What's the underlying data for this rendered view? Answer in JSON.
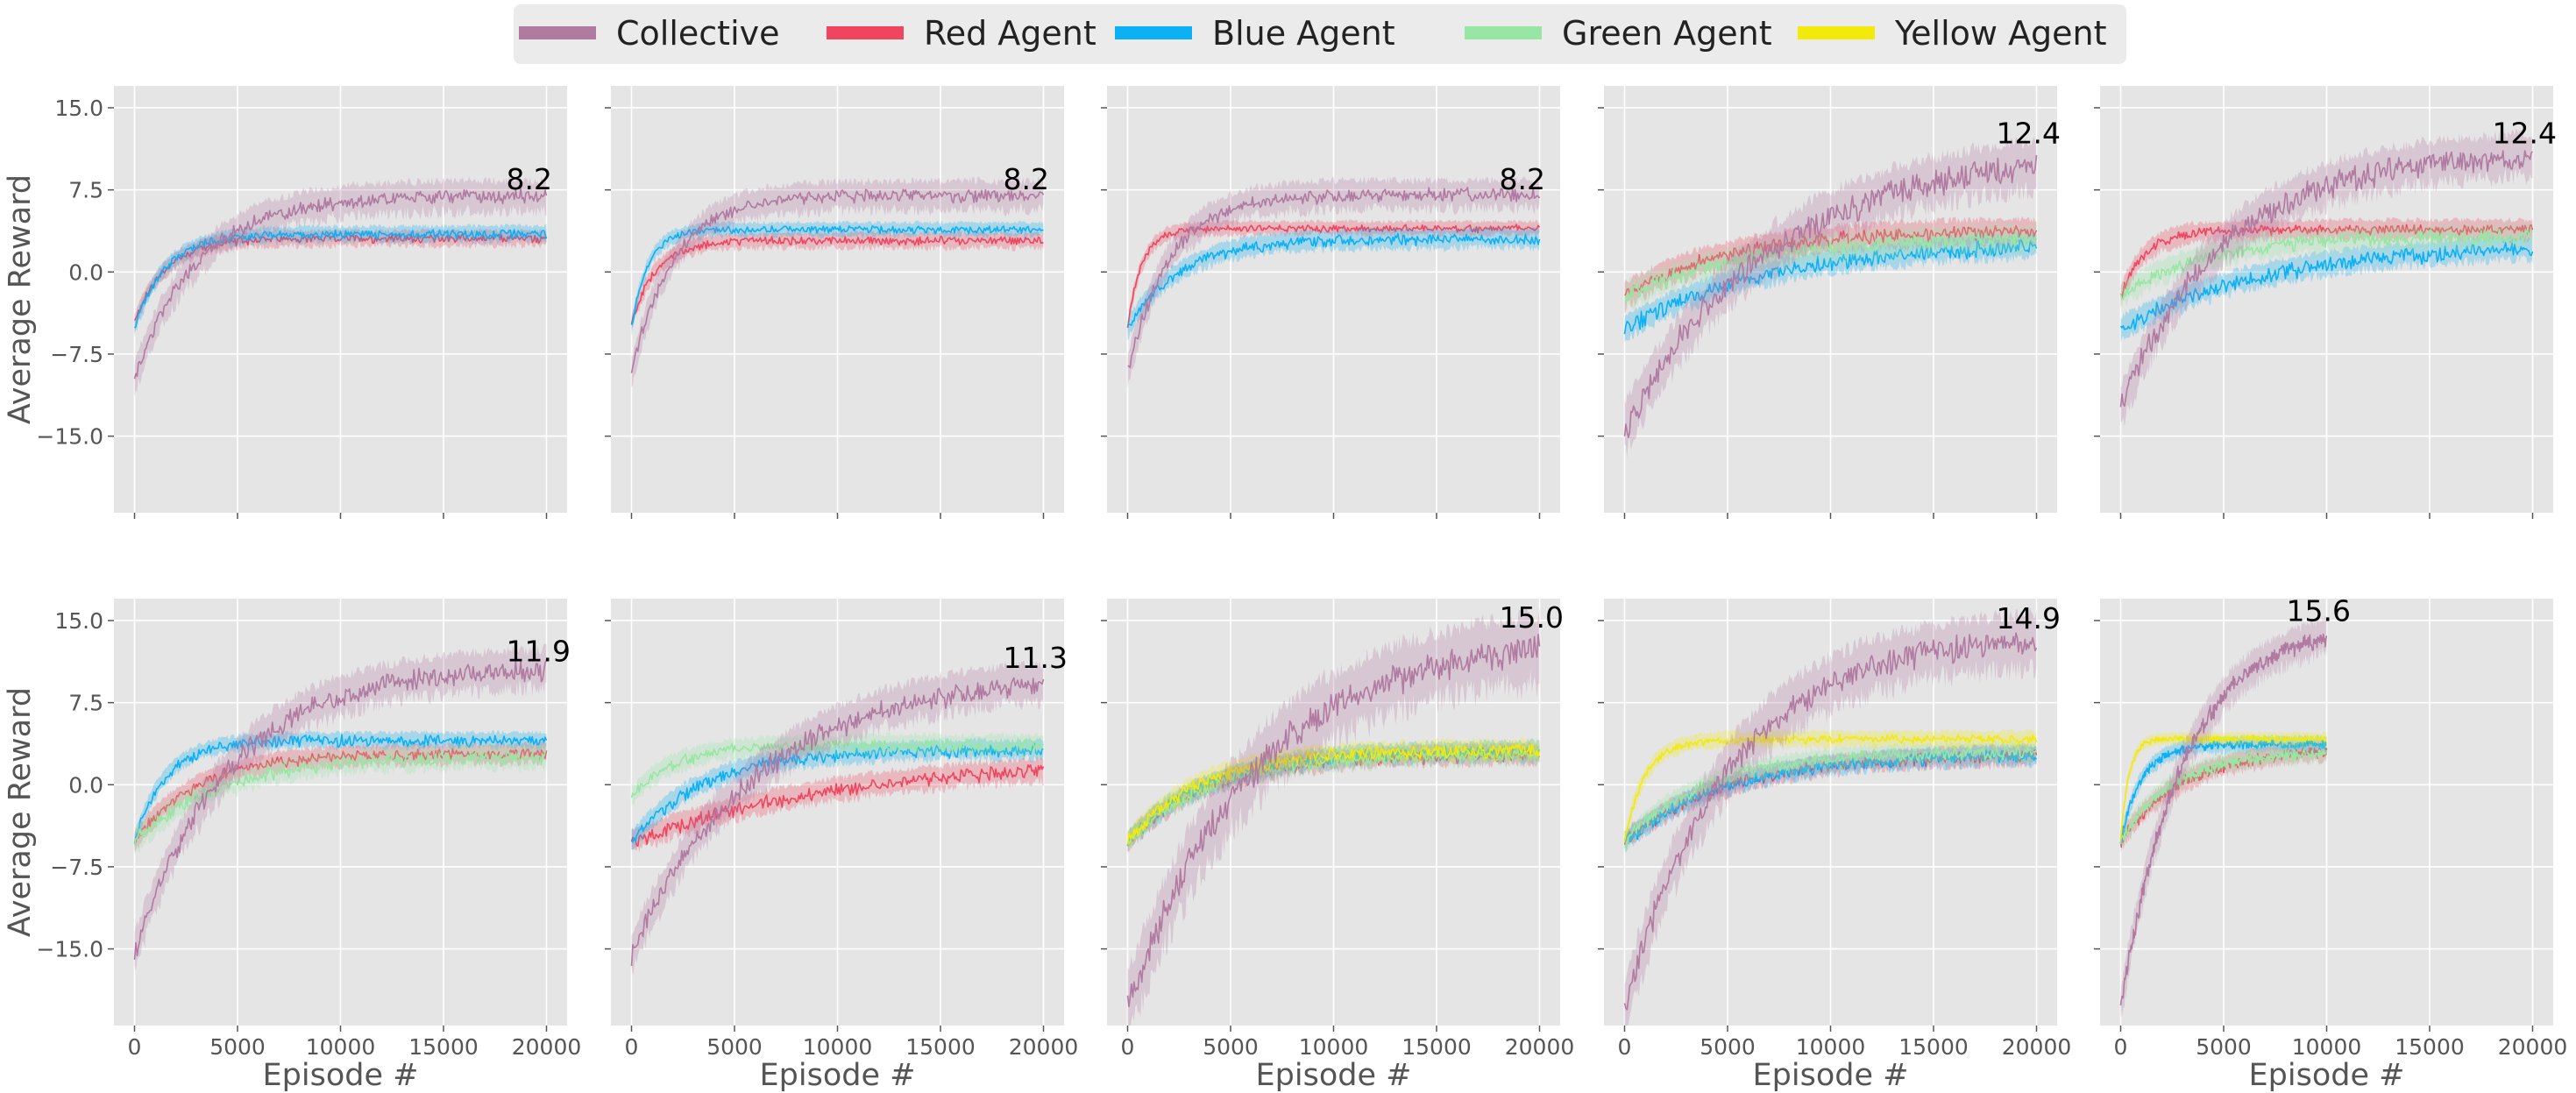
{
  "chart_data": {
    "type": "line",
    "layout": "2 rows x 5 columns, shared y axis",
    "ylabel": "Average Reward",
    "xlabel": "Episode #",
    "ylim": [
      -22,
      17
    ],
    "yticks": [
      15.0,
      7.5,
      0.0,
      -7.5,
      -15.0
    ],
    "ytick_labels": [
      "15.0",
      "7.5",
      "0.0",
      "−7.5",
      "−15.0"
    ],
    "xlim": [
      -1000,
      21000
    ],
    "xticks": [
      0,
      5000,
      10000,
      15000,
      20000
    ],
    "xtick_labels": [
      "0",
      "5000",
      "10000",
      "15000",
      "20000"
    ],
    "grid": true,
    "legend_position": "top-center",
    "legend": [
      {
        "name": "Collective",
        "color": "#b07aa1"
      },
      {
        "name": "Red Agent",
        "color": "#f0455f"
      },
      {
        "name": "Blue Agent",
        "color": "#0bb0f5"
      },
      {
        "name": "Green Agent",
        "color": "#98e6a4"
      },
      {
        "name": "Yellow Agent",
        "color": "#f2ea0a"
      }
    ],
    "panels": [
      {
        "final_label": "8.2",
        "final_value": 8.2,
        "x_max": 20000,
        "series": [
          {
            "name": "Collective",
            "start": -9.5,
            "plateau": 7.2,
            "rate": 3000,
            "noise": 1.0,
            "band": 1.6
          },
          {
            "name": "Red Agent",
            "start": -4.5,
            "plateau": 3.2,
            "rate": 1500,
            "noise": 0.6,
            "band": 0.8
          },
          {
            "name": "Blue Agent",
            "start": -5,
            "plateau": 3.6,
            "rate": 1500,
            "noise": 0.6,
            "band": 0.8
          }
        ]
      },
      {
        "final_label": "8.2",
        "final_value": 8.2,
        "x_max": 20000,
        "series": [
          {
            "name": "Collective",
            "start": -9,
            "plateau": 7.2,
            "rate": 2000,
            "noise": 0.9,
            "band": 1.5
          },
          {
            "name": "Red Agent",
            "start": -4.5,
            "plateau": 3.0,
            "rate": 1200,
            "noise": 0.6,
            "band": 0.8
          },
          {
            "name": "Blue Agent",
            "start": -5,
            "plateau": 4.0,
            "rate": 800,
            "noise": 0.5,
            "band": 0.7
          }
        ]
      },
      {
        "final_label": "8.2",
        "final_value": 8.2,
        "x_max": 20000,
        "series": [
          {
            "name": "Collective",
            "start": -9,
            "plateau": 7.3,
            "rate": 2000,
            "noise": 1.0,
            "band": 1.5
          },
          {
            "name": "Red Agent",
            "start": -5,
            "plateau": 4.1,
            "rate": 700,
            "noise": 0.5,
            "band": 0.7
          },
          {
            "name": "Blue Agent",
            "start": -5,
            "plateau": 3.2,
            "rate": 2500,
            "noise": 0.8,
            "band": 1.0
          }
        ]
      },
      {
        "final_label": "12.4",
        "final_value": 12.4,
        "x_max": 20000,
        "series": [
          {
            "name": "Collective",
            "start": -14,
            "plateau": 11.6,
            "rate": 7000,
            "noise": 2.0,
            "band": 2.5
          },
          {
            "name": "Red Agent",
            "start": -2,
            "plateau": 4.0,
            "rate": 5000,
            "noise": 1.0,
            "band": 1.3
          },
          {
            "name": "Blue Agent",
            "start": -5,
            "plateau": 3.0,
            "rate": 7000,
            "noise": 1.1,
            "band": 1.2
          },
          {
            "name": "Green Agent",
            "start": -2,
            "plateau": 3.5,
            "rate": 6000,
            "noise": 1.1,
            "band": 1.4
          }
        ]
      },
      {
        "final_label": "12.4",
        "final_value": 12.4,
        "x_max": 20000,
        "series": [
          {
            "name": "Collective",
            "start": -12,
            "plateau": 11.4,
            "rate": 5000,
            "noise": 1.8,
            "band": 2.2
          },
          {
            "name": "Red Agent",
            "start": -2,
            "plateau": 4.0,
            "rate": 1200,
            "noise": 0.7,
            "band": 1.0
          },
          {
            "name": "Blue Agent",
            "start": -5,
            "plateau": 2.8,
            "rate": 7000,
            "noise": 1.1,
            "band": 1.2
          },
          {
            "name": "Green Agent",
            "start": -2,
            "plateau": 3.5,
            "rate": 4000,
            "noise": 1.0,
            "band": 1.2
          }
        ]
      },
      {
        "final_label": "11.9",
        "final_value": 11.9,
        "x_max": 20000,
        "series": [
          {
            "name": "Collective",
            "start": -15,
            "plateau": 11.2,
            "rate": 4500,
            "noise": 1.5,
            "band": 2.0
          },
          {
            "name": "Red Agent",
            "start": -5,
            "plateau": 3.0,
            "rate": 3000,
            "noise": 0.8,
            "band": 1.0
          },
          {
            "name": "Blue Agent",
            "start": -5,
            "plateau": 4.2,
            "rate": 1500,
            "noise": 0.8,
            "band": 0.8
          },
          {
            "name": "Green Agent",
            "start": -5,
            "plateau": 2.8,
            "rate": 4000,
            "noise": 1.0,
            "band": 1.2
          }
        ]
      },
      {
        "final_label": "11.3",
        "final_value": 11.3,
        "x_max": 20000,
        "series": [
          {
            "name": "Collective",
            "start": -15,
            "plateau": 10.5,
            "rate": 6000,
            "noise": 1.6,
            "band": 2.0
          },
          {
            "name": "Red Agent",
            "start": -5,
            "plateau": 2.5,
            "rate": 10000,
            "noise": 1.0,
            "band": 1.2
          },
          {
            "name": "Blue Agent",
            "start": -5,
            "plateau": 3.4,
            "rate": 3500,
            "noise": 0.9,
            "band": 1.0
          },
          {
            "name": "Green Agent",
            "start": -1,
            "plateau": 3.8,
            "rate": 2000,
            "noise": 0.8,
            "band": 1.0
          }
        ]
      },
      {
        "final_label": "15.0",
        "final_value": 15.0,
        "x_max": 20000,
        "series": [
          {
            "name": "Collective",
            "start": -20,
            "plateau": 14.0,
            "rate": 6000,
            "noise": 2.2,
            "band": 3.5
          },
          {
            "name": "Red Agent",
            "start": -5,
            "plateau": 3.0,
            "rate": 4000,
            "noise": 0.9,
            "band": 1.0
          },
          {
            "name": "Blue Agent",
            "start": -5,
            "plateau": 3.3,
            "rate": 4000,
            "noise": 0.9,
            "band": 1.0
          },
          {
            "name": "Green Agent",
            "start": -5,
            "plateau": 3.0,
            "rate": 4000,
            "noise": 0.9,
            "band": 1.0
          },
          {
            "name": "Yellow Agent",
            "start": -5,
            "plateau": 3.4,
            "rate": 3500,
            "noise": 1.0,
            "band": 1.0
          }
        ]
      },
      {
        "final_label": "14.9",
        "final_value": 14.9,
        "x_max": 20000,
        "series": [
          {
            "name": "Collective",
            "start": -20,
            "plateau": 14.2,
            "rate": 5000,
            "noise": 1.8,
            "band": 2.8
          },
          {
            "name": "Red Agent",
            "start": -5,
            "plateau": 3.0,
            "rate": 5000,
            "noise": 0.9,
            "band": 1.0
          },
          {
            "name": "Blue Agent",
            "start": -5,
            "plateau": 3.0,
            "rate": 5000,
            "noise": 0.9,
            "band": 1.0
          },
          {
            "name": "Green Agent",
            "start": -5,
            "plateau": 3.2,
            "rate": 4000,
            "noise": 0.9,
            "band": 1.0
          },
          {
            "name": "Yellow Agent",
            "start": -5,
            "plateau": 4.3,
            "rate": 1000,
            "noise": 0.6,
            "band": 0.8
          }
        ]
      },
      {
        "final_label": "15.6",
        "final_value": 15.6,
        "x_max": 10000,
        "series": [
          {
            "name": "Collective",
            "start": -20,
            "plateau": 15.0,
            "rate": 3000,
            "noise": 1.2,
            "band": 1.8
          },
          {
            "name": "Red Agent",
            "start": -5,
            "plateau": 3.5,
            "rate": 3000,
            "noise": 0.8,
            "band": 1.0
          },
          {
            "name": "Blue Agent",
            "start": -5,
            "plateau": 3.8,
            "rate": 1000,
            "noise": 0.6,
            "band": 0.8
          },
          {
            "name": "Green Agent",
            "start": -5,
            "plateau": 3.2,
            "rate": 2500,
            "noise": 0.8,
            "band": 1.0
          },
          {
            "name": "Yellow Agent",
            "start": -5,
            "plateau": 4.3,
            "rate": 400,
            "noise": 0.4,
            "band": 0.6
          }
        ]
      }
    ]
  }
}
